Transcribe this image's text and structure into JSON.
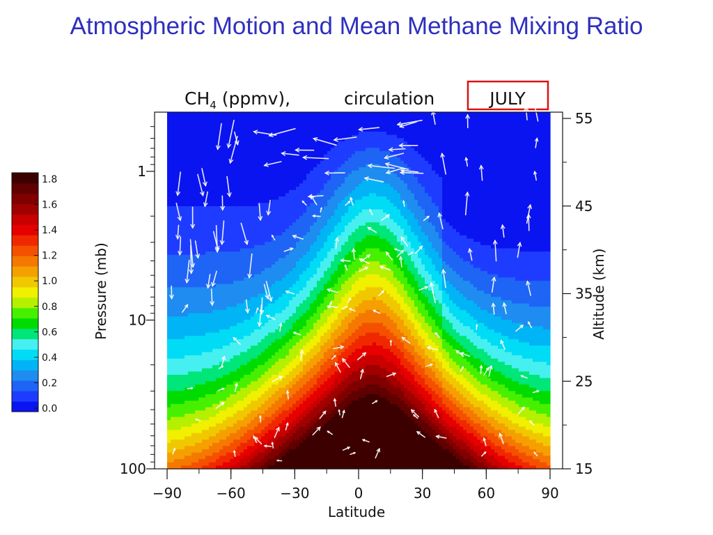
{
  "slide": {
    "title": "Atmospheric Motion and Mean Methane Mixing Ratio"
  },
  "colors": {
    "title": "#2f2fbe",
    "month_box": "#dd1111"
  },
  "chart_data": {
    "type": "heatmap",
    "title": {
      "species": "CH",
      "subscript": "4",
      "units": " (ppmv),",
      "overlay": "circulation",
      "month": "JULY"
    },
    "xlabel": "Latitude",
    "ylabel": "Pressure (mb)",
    "y2label": "Altitude (km)",
    "xlim": [
      -90,
      90
    ],
    "ylim": [
      100,
      0.4
    ],
    "yscale": "log",
    "x_ticks": [
      -90,
      -60,
      -30,
      0,
      30,
      60,
      90
    ],
    "x_tick_labels": [
      "−90",
      "−60",
      "−30",
      "0",
      "30",
      "60",
      "90"
    ],
    "y_ticks": [
      1,
      10,
      100
    ],
    "y_tick_labels": [
      "1",
      "10",
      "100"
    ],
    "y2_ticks": [
      15,
      25,
      35,
      45,
      55
    ],
    "y2_tick_labels": [
      "15",
      "25",
      "35",
      "45",
      "55"
    ],
    "colorbar": {
      "min": 0.0,
      "max": 1.8,
      "step": 0.1,
      "tick_values": [
        0.0,
        0.2,
        0.4,
        0.6,
        0.8,
        1.0,
        1.2,
        1.4,
        1.6,
        1.8
      ],
      "tick_labels": [
        "0.0",
        "0.2",
        "0.4",
        "0.6",
        "0.8",
        "1.0",
        "1.2",
        "1.4",
        "1.6",
        "1.8"
      ],
      "colors": [
        "#0a14f0",
        "#1e3cff",
        "#1e64f5",
        "#1e8cf0",
        "#00b4f5",
        "#00dcf5",
        "#46f0f0",
        "#00e678",
        "#00dc00",
        "#46f000",
        "#b4f000",
        "#f0f000",
        "#f0c800",
        "#f5a000",
        "#f57800",
        "#f55000",
        "#f02800",
        "#e60000",
        "#c80000",
        "#a00000",
        "#800000",
        "#600000",
        "#3c0000"
      ]
    },
    "field_description": "CH4 mixing ratio maximum near 1.8 ppmv centred at 0-10N below 10 mb; values drop to about 0.1-0.2 ppmv at the top polar edges."
  }
}
